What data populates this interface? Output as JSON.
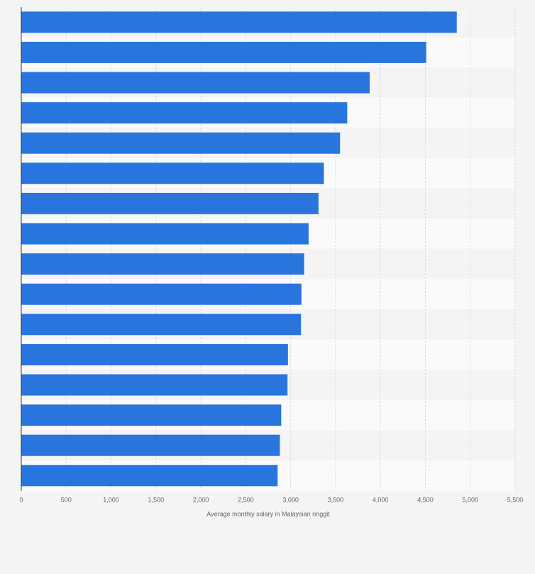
{
  "chart_data": {
    "type": "bar",
    "orientation": "horizontal",
    "categories": [
      "",
      "",
      "",
      "",
      "",
      "",
      "",
      "",
      "",
      "",
      "",
      "",
      "",
      "",
      "",
      ""
    ],
    "values": [
      4850,
      4510,
      3880,
      3630,
      3550,
      3370,
      3310,
      3200,
      3150,
      3120,
      3115,
      2970,
      2965,
      2895,
      2880,
      2855
    ],
    "xlabel": "Average monthly salary in Malaysian ringgit",
    "ylabel": "",
    "xlim": [
      0,
      5500
    ],
    "ticks": [
      0,
      500,
      1000,
      1500,
      2000,
      2500,
      3000,
      3500,
      4000,
      4500,
      5000,
      5500
    ],
    "tick_labels": [
      "0",
      "500",
      "1,000",
      "1,500",
      "2,000",
      "2,500",
      "3,000",
      "3,500",
      "4,000",
      "4,500",
      "5,000",
      "5,500"
    ],
    "grid": true,
    "legend": "none",
    "bar_color": "#2876dd",
    "band_colors": [
      "#f4f4f4",
      "#fafafa"
    ],
    "grid_color": "#dddddd",
    "axis_color": "#333333"
  }
}
